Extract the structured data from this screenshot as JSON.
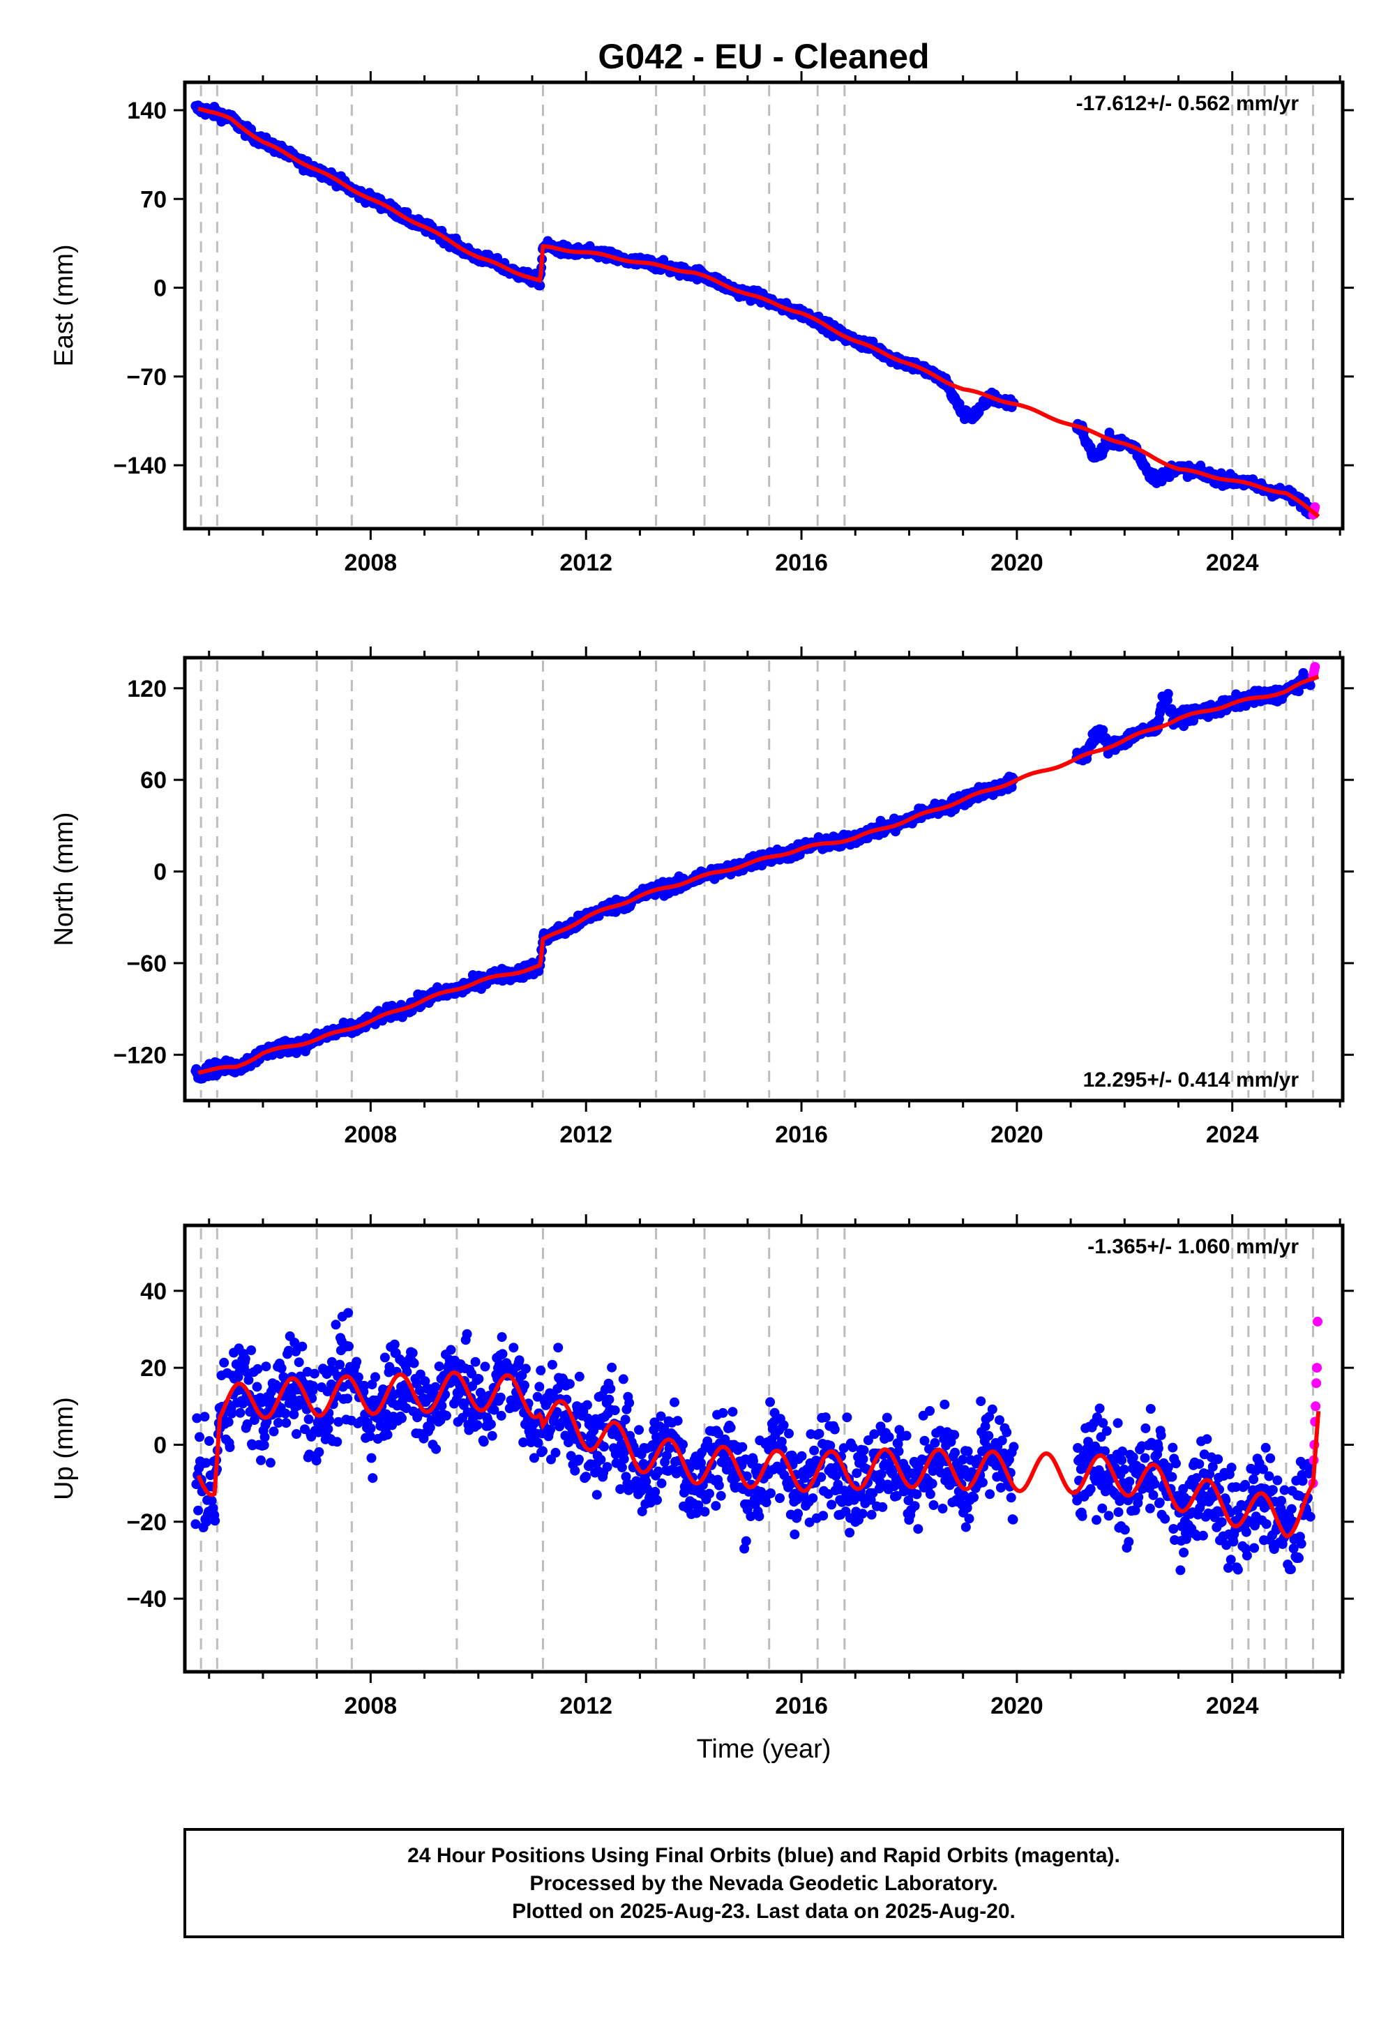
{
  "title": "G042  - EU - Cleaned",
  "xlabel": "Time (year)",
  "x_ticks": [
    "2008",
    "2012",
    "2016",
    "2020",
    "2024"
  ],
  "colors": {
    "final": "#0000ff",
    "rapid": "#ff00ff",
    "model": "#ff0000",
    "event_lines": "#bdbdbd"
  },
  "footer": {
    "line1": "24 Hour Positions Using Final Orbits (blue) and Rapid Orbits (magenta).",
    "line2": "Processed by the Nevada Geodetic Laboratory.",
    "line3": "Plotted on 2025-Aug-23. Last data on 2025-Aug-20."
  },
  "chart_data": [
    {
      "type": "scatter",
      "ylabel": "East (mm)",
      "rate": "-17.612+/- 0.562 mm/yr",
      "rate_position": "top-right",
      "xlim": [
        2004.55,
        2026.05
      ],
      "ylim": [
        -190,
        162
      ],
      "y_ticks": [
        140,
        70,
        0,
        -70,
        -140
      ],
      "y_tick_labels": [
        "140",
        "70",
        "0",
        "−70",
        "−140"
      ],
      "event_lines": [
        2004.85,
        2005.15,
        2007.0,
        2007.65,
        2009.6,
        2011.2,
        2013.3,
        2014.2,
        2015.4,
        2016.3,
        2016.8,
        2024.0,
        2024.3,
        2024.6,
        2025.0,
        2025.5
      ],
      "trend_points": [
        [
          2004.8,
          142
        ],
        [
          2005.4,
          133
        ],
        [
          2006.0,
          115
        ],
        [
          2007.0,
          93
        ],
        [
          2008.0,
          70
        ],
        [
          2009.0,
          48
        ],
        [
          2010.0,
          24
        ],
        [
          2011.15,
          5
        ],
        [
          2011.2,
          32
        ],
        [
          2012.0,
          28
        ],
        [
          2013.0,
          20
        ],
        [
          2014.0,
          12
        ],
        [
          2015.0,
          -5
        ],
        [
          2016.0,
          -20
        ],
        [
          2017.0,
          -42
        ],
        [
          2018.0,
          -60
        ],
        [
          2019.0,
          -80
        ],
        [
          2020.0,
          -92
        ],
        [
          2021.0,
          -108
        ],
        [
          2022.0,
          -123
        ],
        [
          2023.0,
          -143
        ],
        [
          2024.0,
          -152
        ],
        [
          2025.0,
          -162
        ],
        [
          2025.6,
          -180
        ]
      ],
      "gaps": [
        [
          2019.95,
          2021.1
        ]
      ],
      "noise_mm": 3,
      "excursions": [
        [
          2018.7,
          2019.5,
          -20
        ],
        [
          2021.2,
          2021.7,
          -18
        ],
        [
          2022.2,
          2022.9,
          -15
        ]
      ],
      "rapid": {
        "x_start": 2025.45,
        "y": -176
      }
    },
    {
      "type": "scatter",
      "ylabel": "North (mm)",
      "rate": "12.295+/- 0.414 mm/yr",
      "rate_position": "bottom-right",
      "xlim": [
        2004.55,
        2026.05
      ],
      "ylim": [
        -150,
        140
      ],
      "y_ticks": [
        120,
        60,
        0,
        -60,
        -120
      ],
      "y_tick_labels": [
        "120",
        "60",
        "0",
        "−60",
        "−120"
      ],
      "event_lines": [
        2004.85,
        2005.15,
        2007.0,
        2007.65,
        2009.6,
        2011.2,
        2013.3,
        2014.2,
        2015.4,
        2016.3,
        2016.8,
        2024.0,
        2024.3,
        2024.6,
        2025.0,
        2025.5
      ],
      "trend_points": [
        [
          2004.8,
          -131
        ],
        [
          2005.5,
          -128
        ],
        [
          2006.0,
          -119
        ],
        [
          2007.0,
          -110
        ],
        [
          2008.0,
          -98
        ],
        [
          2009.0,
          -84
        ],
        [
          2010.0,
          -72
        ],
        [
          2011.15,
          -62
        ],
        [
          2011.2,
          -45
        ],
        [
          2012.0,
          -30
        ],
        [
          2013.0,
          -16
        ],
        [
          2014.0,
          -5
        ],
        [
          2015.0,
          5
        ],
        [
          2016.0,
          15
        ],
        [
          2017.0,
          22
        ],
        [
          2018.0,
          34
        ],
        [
          2019.0,
          47
        ],
        [
          2020.0,
          60
        ],
        [
          2021.0,
          72
        ],
        [
          2022.0,
          86
        ],
        [
          2023.0,
          100
        ],
        [
          2024.0,
          110
        ],
        [
          2025.0,
          118
        ],
        [
          2025.6,
          128
        ]
      ],
      "gaps": [
        [
          2019.95,
          2021.1
        ]
      ],
      "noise_mm": 3,
      "excursions": [
        [
          2021.3,
          2021.7,
          12
        ],
        [
          2022.6,
          2022.9,
          18
        ]
      ],
      "rapid": {
        "x_start": 2025.45,
        "y": 131
      }
    },
    {
      "type": "scatter",
      "ylabel": "Up (mm)",
      "rate": "-1.365+/- 1.060 mm/yr",
      "rate_position": "top-right",
      "xlim": [
        2004.55,
        2026.05
      ],
      "ylim": [
        -59,
        57
      ],
      "y_ticks": [
        40,
        20,
        0,
        -20,
        -40
      ],
      "y_tick_labels": [
        "40",
        "20",
        "0",
        "−20",
        "−40"
      ],
      "event_lines": [
        2004.85,
        2005.15,
        2007.0,
        2007.65,
        2009.6,
        2011.2,
        2013.3,
        2014.2,
        2015.4,
        2016.3,
        2016.8,
        2024.0,
        2024.3,
        2024.6,
        2025.0,
        2025.5
      ],
      "trend_points": [
        [
          2004.8,
          -8
        ],
        [
          2005.1,
          -8
        ],
        [
          2005.2,
          10
        ],
        [
          2006.0,
          12
        ],
        [
          2008.0,
          13
        ],
        [
          2010.0,
          14
        ],
        [
          2011.15,
          12
        ],
        [
          2011.2,
          8
        ],
        [
          2012.0,
          4
        ],
        [
          2013.0,
          -2
        ],
        [
          2014.0,
          -5
        ],
        [
          2016.0,
          -7
        ],
        [
          2018.0,
          -6
        ],
        [
          2020.0,
          -7
        ],
        [
          2022.0,
          -8
        ],
        [
          2023.0,
          -12
        ],
        [
          2024.0,
          -16
        ],
        [
          2025.0,
          -19
        ],
        [
          2025.5,
          -15
        ],
        [
          2025.6,
          4
        ]
      ],
      "seasonal_amp": 5,
      "gaps": [
        [
          2019.95,
          2021.1
        ]
      ],
      "noise_mm": 9,
      "rapid": {
        "x_start": 2025.45,
        "values": [
          -10,
          -4,
          0,
          6,
          10,
          16,
          20,
          32
        ]
      }
    }
  ]
}
